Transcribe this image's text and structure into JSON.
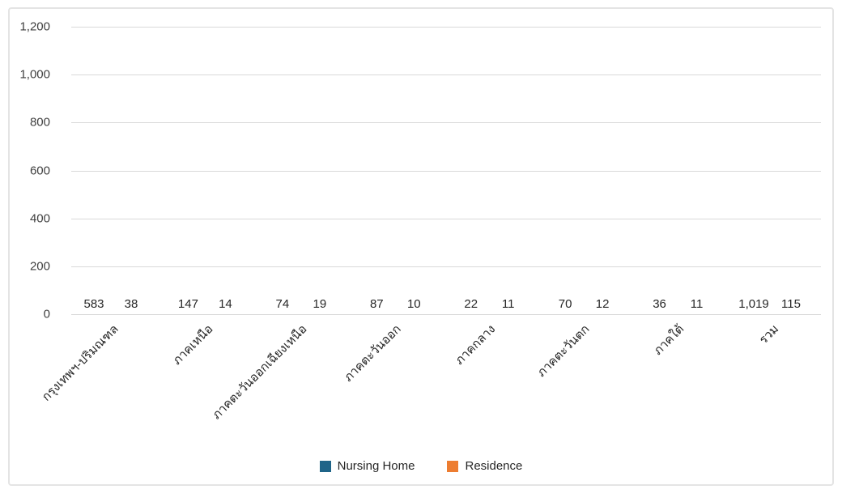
{
  "chart_data": {
    "type": "bar",
    "title": "",
    "xlabel": "",
    "ylabel": "",
    "categories": [
      "กรุงเทพฯ-ปริมณฑล",
      "ภาคเหนือ",
      "ภาคตะวันออกเฉียงเหนือ",
      "ภาคตะวันออก",
      "ภาคกลาง",
      "ภาคตะวันตก",
      "ภาคใต้",
      "รวม"
    ],
    "series": [
      {
        "name": "Nursing Home",
        "color": "#1f6488",
        "values": [
          583,
          147,
          74,
          87,
          22,
          70,
          36,
          1019
        ]
      },
      {
        "name": "Residence",
        "color": "#ed7d31",
        "values": [
          38,
          14,
          19,
          10,
          11,
          12,
          11,
          115
        ]
      }
    ],
    "ylim": [
      0,
      1200
    ],
    "ytick_step": 200,
    "ytick_labels": [
      "0",
      "200",
      "400",
      "600",
      "800",
      "1,000",
      "1,200"
    ],
    "grid": "horizontal",
    "gridline_color": "#d9d9d9",
    "legend_position": "bottom",
    "bar_value_labels": [
      "583",
      "38",
      "147",
      "14",
      "74",
      "19",
      "87",
      "10",
      "22",
      "11",
      "70",
      "12",
      "36",
      "11",
      "1,019",
      "115"
    ]
  }
}
